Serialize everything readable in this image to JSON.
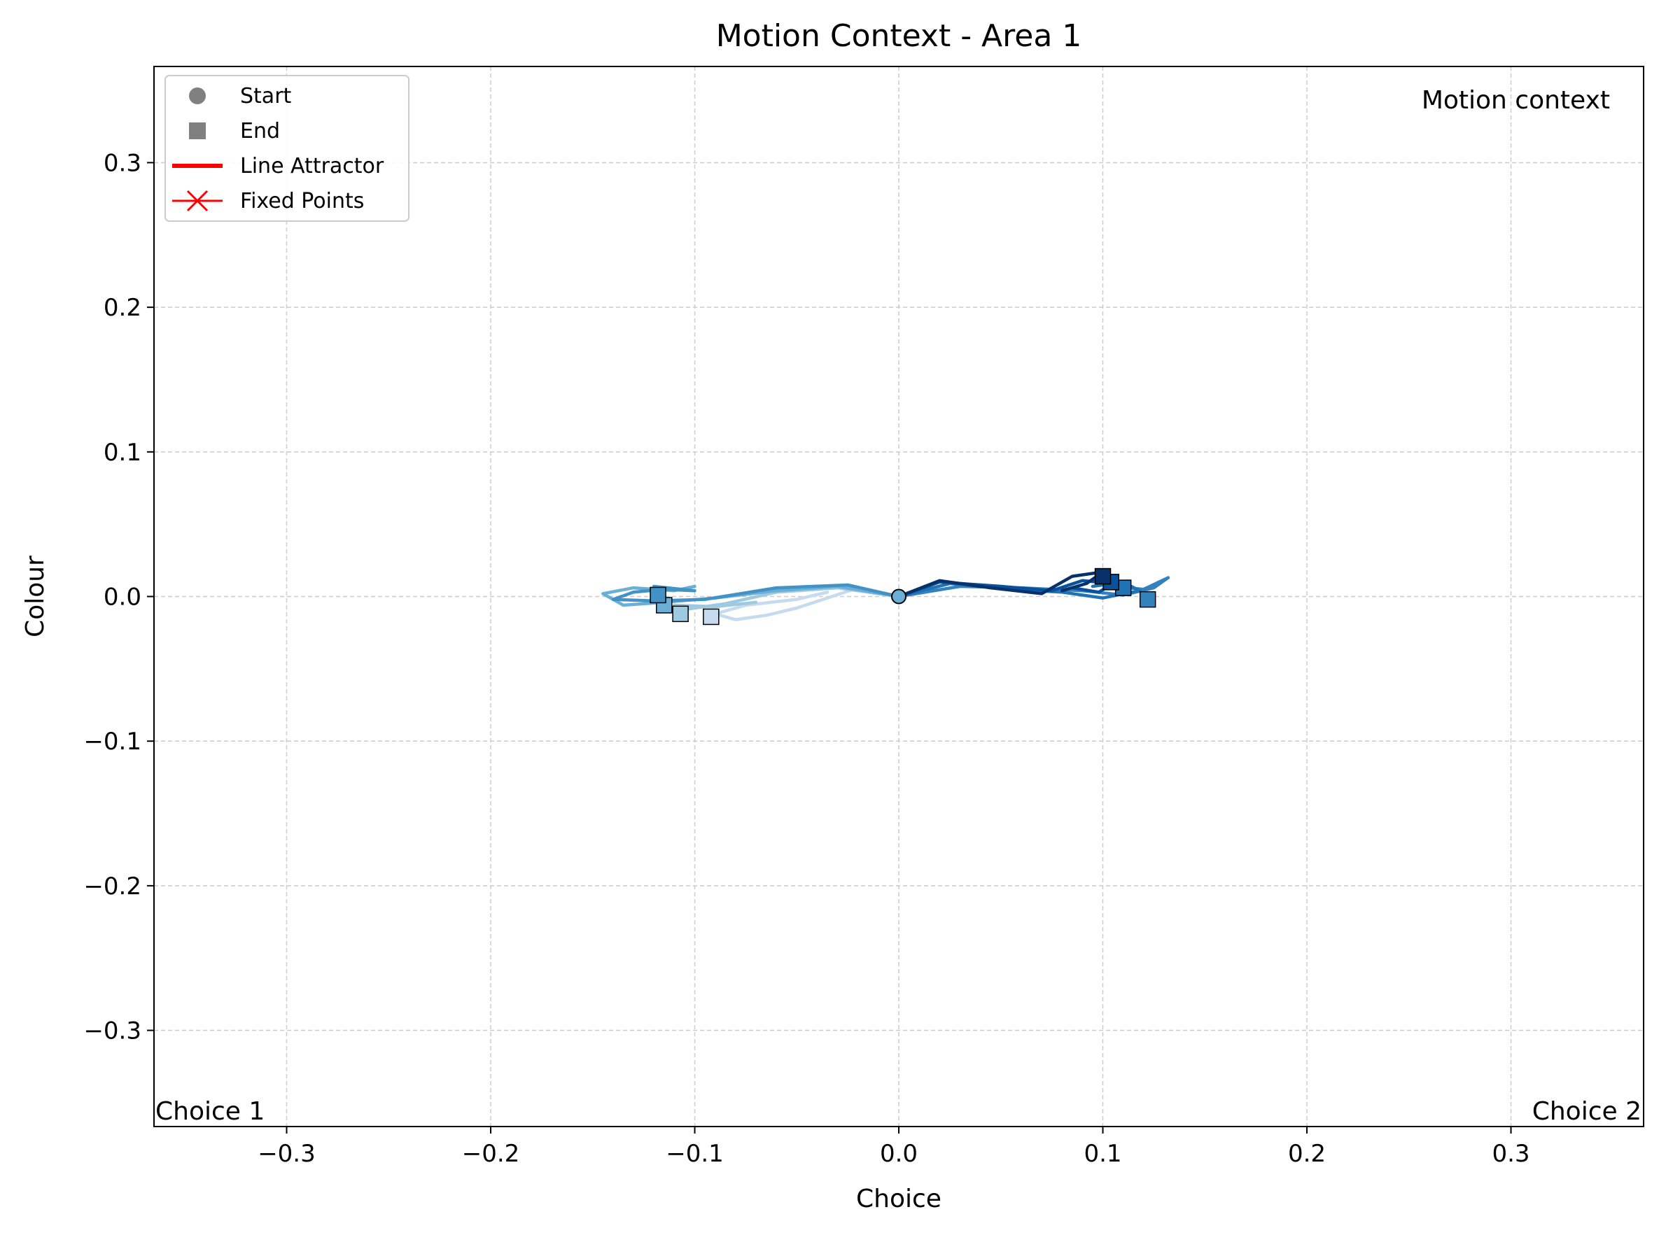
{
  "chart_data": {
    "type": "line",
    "title": "Motion Context - Area 1",
    "xlabel": "Choice",
    "ylabel": "Colour",
    "xlim": [
      -0.365,
      0.365
    ],
    "ylim": [
      -0.3665,
      0.3665
    ],
    "xticks": [
      -0.3,
      -0.2,
      -0.1,
      0.0,
      0.1,
      0.2,
      0.3
    ],
    "yticks": [
      -0.3,
      -0.2,
      -0.1,
      0.0,
      0.1,
      0.2,
      0.3
    ],
    "xtick_labels": [
      "−0.3",
      "−0.2",
      "−0.1",
      "0.0",
      "0.1",
      "0.2",
      "0.3"
    ],
    "ytick_labels": [
      "−0.3",
      "−0.2",
      "−0.1",
      "0.0",
      "0.1",
      "0.2",
      "0.3"
    ],
    "grid": true,
    "annotations": {
      "context": "Motion context",
      "choice1": "Choice 1",
      "choice2": "Choice 2"
    },
    "legend": {
      "placement": "top-left",
      "entries": [
        {
          "label": "Start",
          "marker": "circle",
          "color": "#808080"
        },
        {
          "label": "End",
          "marker": "square",
          "color": "#808080"
        },
        {
          "label": "Line Attractor",
          "marker": "line",
          "color": "#ff0000"
        },
        {
          "label": "Fixed Points",
          "marker": "x-line",
          "color": "#ff0000"
        }
      ]
    },
    "series": [
      {
        "color": "#c6dbef",
        "points": [
          [
            0,
            0
          ],
          [
            -0.02,
            0.006
          ],
          [
            -0.035,
            -0.001
          ],
          [
            -0.05,
            -0.008
          ],
          [
            -0.065,
            -0.013
          ],
          [
            -0.08,
            -0.016
          ],
          [
            -0.09,
            -0.012
          ],
          [
            -0.075,
            -0.006
          ],
          [
            -0.05,
            -0.002
          ],
          [
            -0.035,
            0.003
          ]
        ],
        "end": [
          -0.092,
          -0.014
        ]
      },
      {
        "color": "#9ecae1",
        "points": [
          [
            0,
            0
          ],
          [
            -0.03,
            0.006
          ],
          [
            -0.06,
            0.003
          ],
          [
            -0.085,
            -0.005
          ],
          [
            -0.105,
            -0.009
          ],
          [
            -0.11,
            -0.006
          ],
          [
            -0.09,
            -0.007
          ],
          [
            -0.07,
            -0.004
          ]
        ],
        "end": [
          -0.107,
          -0.012
        ]
      },
      {
        "color": "#6baed6",
        "points": [
          [
            0,
            0
          ],
          [
            -0.03,
            0.007
          ],
          [
            -0.06,
            0.004
          ],
          [
            -0.09,
            -0.001
          ],
          [
            -0.115,
            -0.004
          ],
          [
            -0.135,
            -0.006
          ],
          [
            -0.145,
            0.002
          ],
          [
            -0.13,
            0.006
          ],
          [
            -0.11,
            0.004
          ],
          [
            -0.1,
            0.007
          ]
        ],
        "end": [
          -0.115,
          -0.006
        ]
      },
      {
        "color": "#4292c6",
        "points": [
          [
            0,
            0
          ],
          [
            -0.025,
            0.008
          ],
          [
            -0.06,
            0.006
          ],
          [
            -0.095,
            -0.002
          ],
          [
            -0.12,
            -0.003
          ],
          [
            -0.14,
            -0.002
          ],
          [
            -0.13,
            0.003
          ],
          [
            -0.115,
            0.005
          ],
          [
            -0.1,
            0.004
          ],
          [
            -0.12,
            0.007
          ]
        ],
        "end": [
          -0.118,
          0.001
        ]
      },
      {
        "color": "#3182bd",
        "points": [
          [
            0,
            0
          ],
          [
            0.03,
            0.007
          ],
          [
            0.06,
            0.006
          ],
          [
            0.09,
            0.004
          ],
          [
            0.11,
            0.001
          ],
          [
            0.125,
            0.006
          ],
          [
            0.132,
            0.013
          ],
          [
            0.12,
            0.005
          ],
          [
            0.105,
            0.007
          ]
        ],
        "end": [
          0.122,
          -0.002
        ]
      },
      {
        "color": "#2171b5",
        "points": [
          [
            0,
            0
          ],
          [
            0.025,
            0.009
          ],
          [
            0.055,
            0.005
          ],
          [
            0.08,
            0.003
          ],
          [
            0.1,
            -0.001
          ],
          [
            0.118,
            0.004
          ],
          [
            0.11,
            0.01
          ],
          [
            0.095,
            0.007
          ]
        ],
        "end": [
          0.11,
          0.006
        ]
      },
      {
        "color": "#08519c",
        "points": [
          [
            0,
            0
          ],
          [
            0.02,
            0.01
          ],
          [
            0.05,
            0.007
          ],
          [
            0.075,
            0.004
          ],
          [
            0.09,
            0.011
          ],
          [
            0.105,
            0.009
          ],
          [
            0.098,
            0.003
          ],
          [
            0.085,
            0.006
          ]
        ],
        "end": [
          0.104,
          0.01
        ]
      },
      {
        "color": "#08306b",
        "points": [
          [
            0,
            0
          ],
          [
            0.02,
            0.011
          ],
          [
            0.045,
            0.006
          ],
          [
            0.07,
            0.002
          ],
          [
            0.085,
            0.014
          ],
          [
            0.1,
            0.017
          ],
          [
            0.092,
            0.009
          ],
          [
            0.08,
            0.004
          ]
        ],
        "end": [
          0.1,
          0.014
        ]
      }
    ],
    "start_point": [
      0,
      0
    ]
  }
}
